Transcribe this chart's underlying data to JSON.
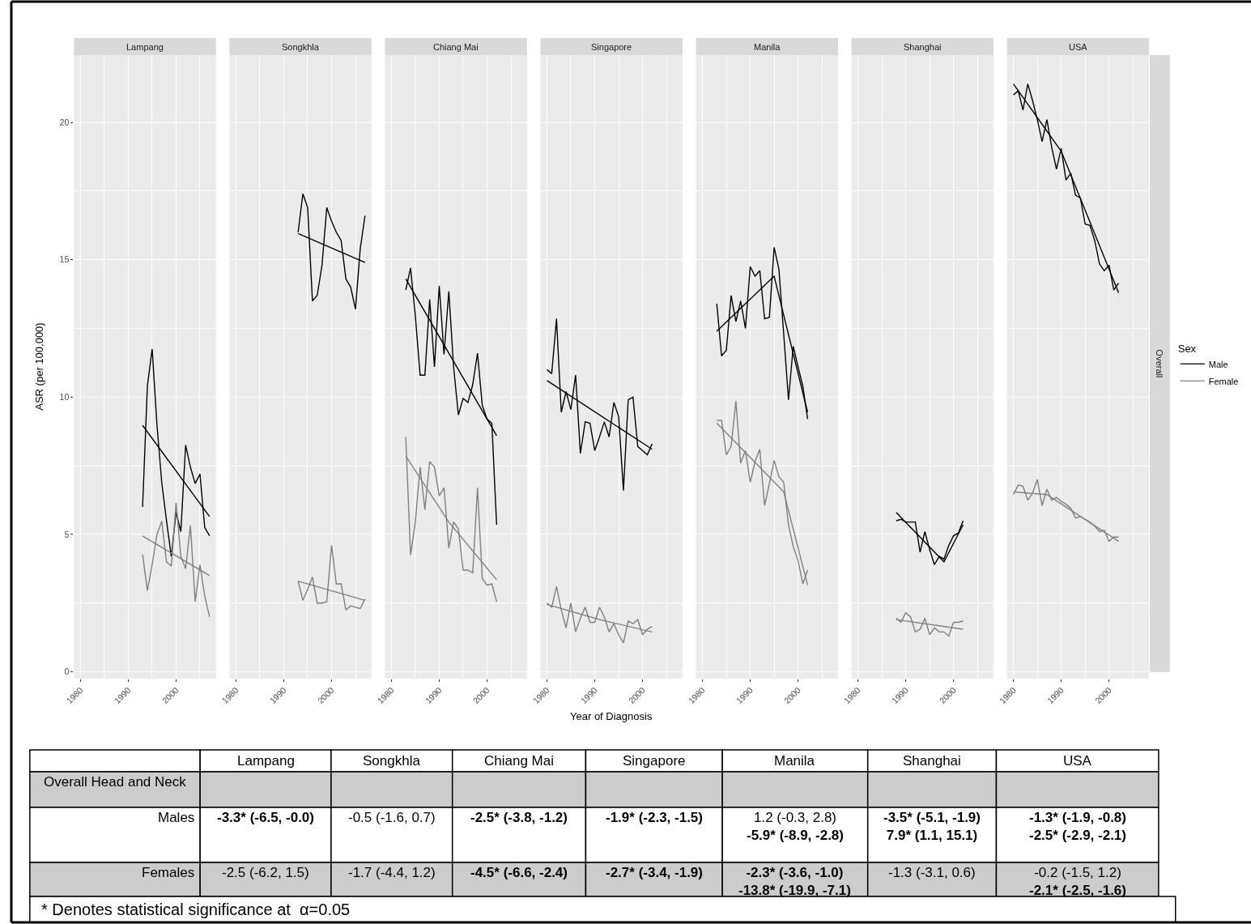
{
  "chart_data": [
    {
      "type": "line",
      "title": "Lampang",
      "ylabel": "ASR (per 100,000)",
      "legend": "right",
      "legend_title": "Sex",
      "x": [
        1993,
        1994,
        1995,
        1996,
        1997,
        1998,
        1999,
        2000,
        2001,
        2002,
        2003,
        2004,
        2005,
        2006,
        2007
      ],
      "series": [
        {
          "name": "Male",
          "color": "#000000",
          "values": [
            6.0,
            10.4,
            11.75,
            9.0,
            6.9,
            5.5,
            4.2,
            5.8,
            5.1,
            8.25,
            7.45,
            6.85,
            7.2,
            5.25,
            4.95
          ]
        },
        {
          "name": "Female",
          "color": "#808080",
          "values": [
            4.27,
            2.95,
            3.9,
            5.0,
            5.48,
            4.0,
            3.85,
            6.15,
            4.2,
            3.75,
            5.33,
            2.55,
            3.9,
            2.75,
            2.0
          ]
        },
        {
          "type": "line",
          "color": "#000000",
          "x": [
            1993,
            2007
          ],
          "values": [
            8.97,
            5.65
          ]
        },
        {
          "type": "line",
          "color": "#808080",
          "x": [
            1993,
            2007
          ],
          "values": [
            4.94,
            3.5
          ]
        }
      ],
      "xlim": [
        1978.65,
        2008.35
      ],
      "ylim": [
        -0.25,
        22.45
      ],
      "xticks": [
        1980,
        1990,
        2000
      ],
      "yticks": [
        0,
        5,
        10,
        15,
        20
      ],
      "grid": true
    },
    {
      "type": "line",
      "title": "Songkhla",
      "x": [
        1993,
        1994,
        1995,
        1996,
        1997,
        1998,
        1999,
        2000,
        2001,
        2002,
        2003,
        2004,
        2005,
        2006,
        2007
      ],
      "series": [
        {
          "color": "#000000",
          "values": [
            16.0,
            17.4,
            16.9,
            13.5,
            13.7,
            14.8,
            16.9,
            16.4,
            16.0,
            15.7,
            14.3,
            14.0,
            13.2,
            15.4,
            16.6
          ]
        },
        {
          "color": "#808080",
          "values": [
            3.3,
            2.6,
            3.0,
            3.45,
            2.5,
            2.5,
            2.55,
            4.6,
            3.2,
            3.2,
            2.25,
            2.4,
            2.35,
            2.3,
            2.65
          ]
        },
        {
          "type": "line",
          "color": "#000000",
          "x": [
            1993,
            2007
          ],
          "values": [
            15.95,
            14.9
          ]
        },
        {
          "type": "line",
          "color": "#808080",
          "x": [
            1993,
            2007
          ],
          "values": [
            3.3,
            2.6
          ]
        }
      ],
      "xlim": [
        1978.65,
        2008.35
      ],
      "ylim": [
        -0.25,
        22.45
      ],
      "xticks": [
        1980,
        1990,
        2000
      ],
      "yticks": [
        0,
        5,
        10,
        15,
        20
      ],
      "grid": true,
      "tick_labels": "x"
    },
    {
      "type": "line",
      "title": "Chiang Mai",
      "x": [
        1983,
        1984,
        1985,
        1986,
        1987,
        1988,
        1989,
        1990,
        1991,
        1992,
        1993,
        1994,
        1995,
        1996,
        1997,
        1998,
        1999,
        2000,
        2001,
        2002
      ],
      "series": [
        {
          "color": "#000000",
          "values": [
            13.9,
            14.7,
            12.95,
            10.8,
            10.8,
            13.55,
            11.1,
            14.05,
            11.55,
            13.85,
            11.1,
            9.35,
            9.95,
            9.8,
            10.45,
            11.6,
            9.7,
            9.2,
            9.05,
            5.35
          ]
        },
        {
          "color": "#808080",
          "values": [
            8.55,
            4.25,
            5.45,
            7.45,
            5.9,
            7.65,
            7.45,
            6.4,
            6.7,
            4.5,
            5.45,
            5.2,
            3.7,
            3.7,
            3.6,
            6.7,
            3.4,
            3.15,
            3.2,
            2.55
          ]
        },
        {
          "type": "line",
          "color": "#000000",
          "x": [
            1983,
            2002
          ],
          "values": [
            14.3,
            8.6
          ]
        },
        {
          "type": "line",
          "color": "#808080",
          "x": [
            1983,
            1992,
            2002
          ],
          "values": [
            7.85,
            5.45,
            3.35
          ]
        }
      ],
      "xlim": [
        1978.65,
        2008.35
      ],
      "ylim": [
        -0.25,
        22.45
      ],
      "xticks": [
        1980,
        1990,
        2000
      ],
      "yticks": [
        0,
        5,
        10,
        15,
        20
      ],
      "grid": true,
      "tick_labels": "x"
    },
    {
      "type": "line",
      "title": "Singapore",
      "xlabel": "Year of Diagnosis",
      "x": [
        1980,
        1981,
        1982,
        1983,
        1984,
        1985,
        1986,
        1987,
        1988,
        1989,
        1990,
        1991,
        1992,
        1993,
        1994,
        1995,
        1996,
        1997,
        1998,
        1999,
        2000,
        2001,
        2002
      ],
      "series": [
        {
          "color": "#000000",
          "values": [
            11.0,
            10.85,
            12.85,
            9.45,
            10.2,
            9.55,
            10.8,
            7.95,
            9.1,
            9.05,
            8.05,
            8.55,
            9.1,
            8.55,
            9.8,
            9.3,
            6.6,
            9.9,
            10.0,
            8.2,
            8.05,
            7.9,
            8.3
          ]
        },
        {
          "color": "#808080",
          "values": [
            2.5,
            2.35,
            3.1,
            2.25,
            1.6,
            2.5,
            1.45,
            1.95,
            2.35,
            1.8,
            1.8,
            2.35,
            2.0,
            1.45,
            1.75,
            1.35,
            1.05,
            1.85,
            1.75,
            1.9,
            1.35,
            1.55,
            1.65
          ]
        },
        {
          "type": "line",
          "color": "#000000",
          "x": [
            1980,
            2002
          ],
          "values": [
            10.6,
            8.1
          ]
        },
        {
          "type": "line",
          "color": "#808080",
          "x": [
            1980,
            1991,
            2002
          ],
          "values": [
            2.45,
            1.9,
            1.45
          ]
        }
      ],
      "xlim": [
        1978.65,
        2008.35
      ],
      "ylim": [
        -0.25,
        22.45
      ],
      "xticks": [
        1980,
        1990,
        2000
      ],
      "yticks": [
        0,
        5,
        10,
        15,
        20
      ],
      "grid": true,
      "tick_labels": "x"
    },
    {
      "type": "line",
      "title": "Manila",
      "x": [
        1983,
        1984,
        1985,
        1986,
        1987,
        1988,
        1989,
        1990,
        1991,
        1992,
        1993,
        1994,
        1995,
        1996,
        1997,
        1998,
        1999,
        2000,
        2001,
        2002
      ],
      "series": [
        {
          "color": "#000000",
          "values": [
            13.4,
            11.5,
            11.7,
            13.7,
            12.75,
            13.5,
            12.5,
            14.75,
            14.4,
            14.6,
            12.85,
            12.9,
            15.45,
            14.65,
            12.3,
            9.9,
            11.85,
            11.1,
            10.4,
            9.2
          ]
        },
        {
          "color": "#808080",
          "values": [
            9.15,
            9.15,
            7.9,
            8.2,
            9.85,
            7.6,
            8.05,
            6.9,
            7.65,
            8.1,
            6.05,
            6.85,
            7.7,
            7.1,
            6.9,
            5.35,
            4.55,
            4.05,
            3.2,
            3.7
          ]
        },
        {
          "type": "line",
          "color": "#000000",
          "x": [
            1983,
            1995,
            2002
          ],
          "values": [
            12.4,
            14.4,
            9.45
          ]
        },
        {
          "type": "line",
          "color": "#808080",
          "x": [
            1983,
            1997,
            2002
          ],
          "values": [
            9.05,
            6.55,
            3.15
          ]
        }
      ],
      "xlim": [
        1978.65,
        2008.35
      ],
      "ylim": [
        -0.25,
        22.45
      ],
      "xticks": [
        1980,
        1990,
        2000
      ],
      "yticks": [
        0,
        5,
        10,
        15,
        20
      ],
      "grid": true,
      "tick_labels": "x"
    },
    {
      "type": "line",
      "title": "Shanghai",
      "x": [
        1988,
        1989,
        1990,
        1991,
        1992,
        1993,
        1994,
        1995,
        1996,
        1997,
        1998,
        1999,
        2000,
        2001,
        2002
      ],
      "series": [
        {
          "color": "#000000",
          "values": [
            5.5,
            5.55,
            5.45,
            5.45,
            5.45,
            4.35,
            5.1,
            4.45,
            3.9,
            4.2,
            4.1,
            4.6,
            4.95,
            5.05,
            5.5
          ]
        },
        {
          "color": "#808080",
          "values": [
            1.95,
            1.8,
            2.15,
            2.0,
            1.45,
            1.55,
            1.95,
            1.35,
            1.6,
            1.45,
            1.45,
            1.3,
            1.8,
            1.8,
            1.85
          ]
        },
        {
          "type": "line",
          "color": "#000000",
          "x": [
            1988,
            1998,
            2002
          ],
          "values": [
            5.8,
            4.0,
            5.35
          ]
        },
        {
          "type": "line",
          "color": "#808080",
          "x": [
            1988,
            2002
          ],
          "values": [
            1.9,
            1.55
          ]
        }
      ],
      "xlim": [
        1978.65,
        2008.35
      ],
      "ylim": [
        -0.25,
        22.45
      ],
      "xticks": [
        1980,
        1990,
        2000
      ],
      "yticks": [
        0,
        5,
        10,
        15,
        20
      ],
      "grid": true,
      "tick_labels": "x"
    },
    {
      "type": "line",
      "title": "USA",
      "annotations": [
        "Overall"
      ],
      "x": [
        1980,
        1981,
        1982,
        1983,
        1984,
        1985,
        1986,
        1987,
        1988,
        1989,
        1990,
        1991,
        1992,
        1993,
        1994,
        1995,
        1996,
        1997,
        1998,
        1999,
        2000,
        2001,
        2002
      ],
      "series": [
        {
          "color": "#000000",
          "values": [
            21.0,
            21.15,
            20.45,
            21.4,
            20.8,
            20.1,
            19.3,
            20.1,
            19.1,
            18.3,
            19.05,
            17.9,
            18.15,
            17.35,
            17.25,
            16.3,
            16.25,
            15.7,
            14.85,
            14.6,
            14.8,
            13.9,
            14.15
          ]
        },
        {
          "color": "#808080",
          "values": [
            6.45,
            6.8,
            6.75,
            6.25,
            6.5,
            7.0,
            6.05,
            6.65,
            6.25,
            6.35,
            6.2,
            6.1,
            5.95,
            5.6,
            5.65,
            5.55,
            5.45,
            5.3,
            5.1,
            5.15,
            4.75,
            4.9,
            4.9
          ]
        },
        {
          "type": "line",
          "color": "#000000",
          "x": [
            1980,
            1990,
            2002
          ],
          "values": [
            21.4,
            18.95,
            13.8
          ]
        },
        {
          "type": "line",
          "color": "#808080",
          "x": [
            1980,
            1987,
            2002
          ],
          "values": [
            6.55,
            6.45,
            4.75
          ]
        }
      ],
      "xlim": [
        1978.65,
        2008.35
      ],
      "ylim": [
        -0.25,
        22.45
      ],
      "xticks": [
        1980,
        1990,
        2000
      ],
      "yticks": [
        0,
        5,
        10,
        15,
        20
      ],
      "grid": true,
      "tick_labels": "x"
    },
    {
      "type": "other",
      "categories": [
        "Lampang",
        "Songkhla",
        "Chiang Mai",
        "Singapore",
        "Manila",
        "Shanghai",
        "USA"
      ],
      "y_categories": [
        "Overall Head and Neck",
        "Males",
        "Females"
      ],
      "cell_labels": [
        [
          null,
          null,
          null,
          null,
          null,
          null,
          null
        ],
        [
          "-3.3* (-6.5, -0.0)",
          "-0.5 (-1.6, 0.7)",
          "-2.5* (-3.8, -1.2)",
          "-1.9* (-2.3, -1.5)",
          "1.2 (-0.3, 2.8)\n-5.9* (-8.9, -2.8)",
          "-3.5* (-5.1, -1.9)\n7.9* (1.1, 15.1)",
          "-1.3* (-1.9, -0.8)\n-2.5* (-2.9, -2.1)"
        ],
        [
          "-2.5 (-6.2, 1.5)",
          "-1.7 (-4.4, 1.2)",
          "-4.5* (-6.6, -2.4)",
          "-2.7* (-3.4, -1.9)",
          "-2.3* (-3.6, -1.0)\n-13.8* (-19.9, -7.1)",
          "-1.3 (-3.1, 0.6)",
          "-0.2 (-1.5, 1.2)\n-2.1* (-2.5, -1.6)"
        ]
      ],
      "annotations": [
        "* Denotes statistical significance at  α=0.05"
      ]
    }
  ]
}
